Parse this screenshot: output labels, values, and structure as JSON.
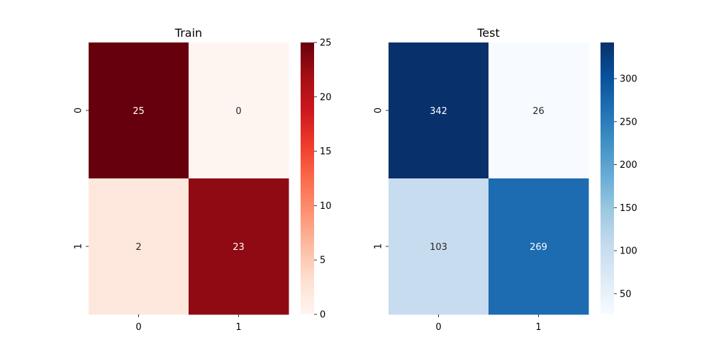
{
  "chart_data": [
    {
      "type": "heatmap",
      "title": "Train",
      "x_categories": [
        "0",
        "1"
      ],
      "y_categories": [
        "0",
        "1"
      ],
      "values": [
        [
          25,
          0
        ],
        [
          2,
          23
        ]
      ],
      "annotations": [
        [
          "25",
          "0"
        ],
        [
          "2",
          "23"
        ]
      ],
      "colormap": "Reds",
      "colorbar": {
        "range": [
          0,
          25
        ],
        "ticks": [
          "0",
          "5",
          "10",
          "15",
          "20",
          "25"
        ]
      },
      "colors": {
        "low": "#fff5f0",
        "high": "#67000d"
      }
    },
    {
      "type": "heatmap",
      "title": "Test",
      "x_categories": [
        "0",
        "1"
      ],
      "y_categories": [
        "0",
        "1"
      ],
      "values": [
        [
          342,
          26
        ],
        [
          103,
          269
        ]
      ],
      "annotations": [
        [
          "342",
          "26"
        ],
        [
          "103",
          "269"
        ]
      ],
      "colormap": "Blues",
      "colorbar": {
        "range": [
          26,
          342
        ],
        "ticks": [
          "50",
          "100",
          "150",
          "200",
          "250",
          "300"
        ]
      },
      "colors": {
        "low": "#f7fbff",
        "high": "#08306b"
      }
    }
  ]
}
